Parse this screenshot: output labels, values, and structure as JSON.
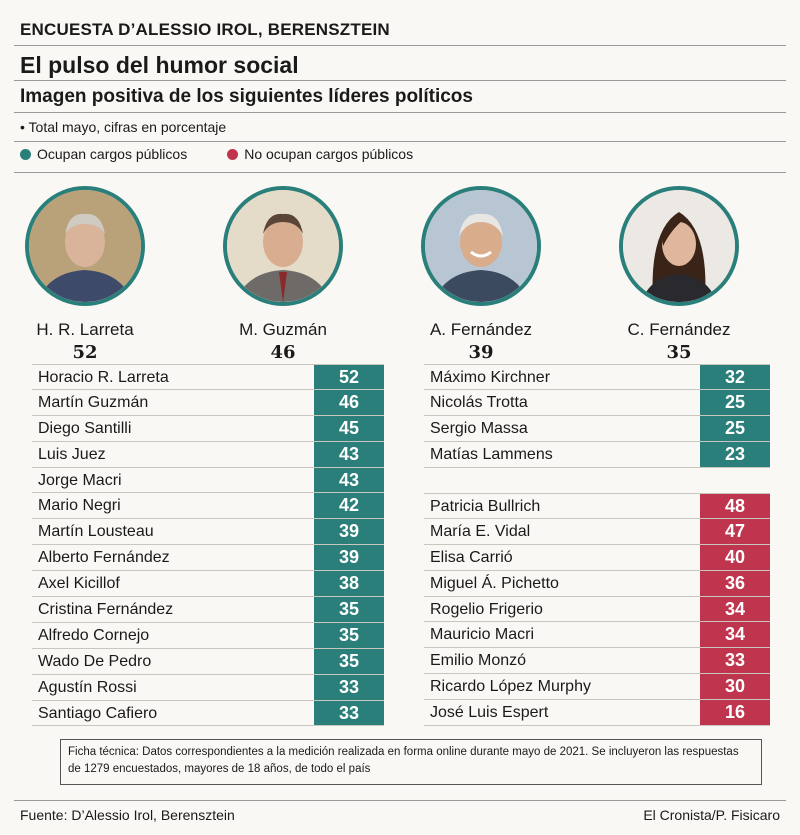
{
  "header": {
    "supertitle": "ENCUESTA D’ALESSIO IROL, BERENSZTEIN",
    "title": "El pulso del humor social",
    "subtitle": "Imagen positiva de los siguientes líderes políticos",
    "note": "• Total mayo, cifras en porcentaje"
  },
  "legend": {
    "public": {
      "label": "Ocupan cargos públicos",
      "color": "#2a7f7a"
    },
    "non_public": {
      "label": "No ocupan cargos públicos",
      "color": "#c0354e"
    }
  },
  "leaders": [
    {
      "name": "H. R. Larreta",
      "value": "52",
      "icon": "portrait-larreta"
    },
    {
      "name": "M. Guzmán",
      "value": "46",
      "icon": "portrait-guzman"
    },
    {
      "name": "A. Fernández",
      "value": "39",
      "icon": "portrait-fernandez"
    },
    {
      "name": "C. Fernández",
      "value": "35",
      "icon": "portrait-cfk"
    }
  ],
  "chart_data": {
    "type": "table",
    "title": "Imagen positiva de los siguientes líderes políticos",
    "unit": "porcentaje",
    "groups": [
      {
        "name": "Ocupan cargos públicos (izquierda)",
        "color": "#2a7f7a",
        "rows": [
          {
            "name": "Horacio R. Larreta",
            "value": 52
          },
          {
            "name": "Martín Guzmán",
            "value": 46
          },
          {
            "name": "Diego Santilli",
            "value": 45
          },
          {
            "name": "Luis Juez",
            "value": 43
          },
          {
            "name": "Jorge Macri",
            "value": 43
          },
          {
            "name": "Mario Negri",
            "value": 42
          },
          {
            "name": "Martín Lousteau",
            "value": 39
          },
          {
            "name": "Alberto Fernández",
            "value": 39
          },
          {
            "name": "Axel Kicillof",
            "value": 38
          },
          {
            "name": "Cristina Fernández",
            "value": 35
          },
          {
            "name": "Alfredo Cornejo",
            "value": 35
          },
          {
            "name": "Wado De Pedro",
            "value": 35
          },
          {
            "name": "Agustín Rossi",
            "value": 33
          },
          {
            "name": "Santiago Cafiero",
            "value": 33
          }
        ]
      },
      {
        "name": "Ocupan cargos públicos (derecha)",
        "color": "#2a7f7a",
        "rows": [
          {
            "name": "Máximo Kirchner",
            "value": 32
          },
          {
            "name": "Nicolás Trotta",
            "value": 25
          },
          {
            "name": "Sergio Massa",
            "value": 25
          },
          {
            "name": "Matías Lammens",
            "value": 23
          }
        ]
      },
      {
        "name": "No ocupan cargos públicos",
        "color": "#c0354e",
        "rows": [
          {
            "name": "Patricia Bullrich",
            "value": 48
          },
          {
            "name": "María E. Vidal",
            "value": 47
          },
          {
            "name": "Elisa Carrió",
            "value": 40
          },
          {
            "name": "Miguel Á. Pichetto",
            "value": 36
          },
          {
            "name": "Rogelio Frigerio",
            "value": 34
          },
          {
            "name": "Mauricio Macri",
            "value": 34
          },
          {
            "name": "Emilio Monzó",
            "value": 33
          },
          {
            "name": "Ricardo López Murphy",
            "value": 30
          },
          {
            "name": "José Luis Espert",
            "value": 16
          }
        ]
      }
    ]
  },
  "ficha": "Ficha técnica: Datos correspondientes a la medición realizada en forma online durante mayo de 2021. Se incluyeron las respuestas de 1279 encuestados, mayores de 18 años, de todo el país",
  "footer": {
    "source": "Fuente: D’Alessio Irol, Berensztein",
    "credit": "El Cronista/P. Fisicaro"
  }
}
